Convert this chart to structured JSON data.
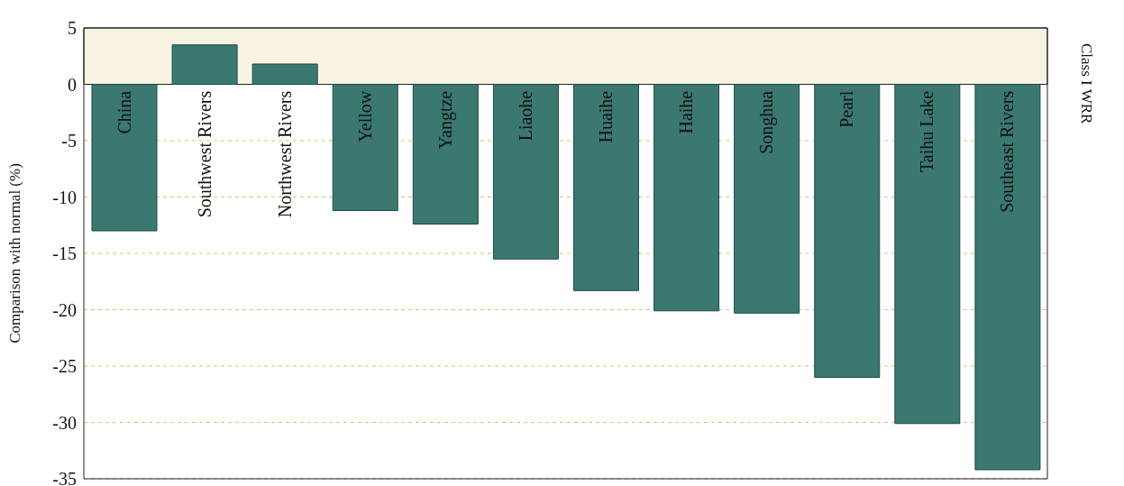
{
  "chart_data": {
    "type": "bar",
    "categories": [
      "China",
      "Southwest Rivers",
      "Northwest Rivers",
      "Yellow",
      "Yangtze",
      "Liaohe",
      "Huaihe",
      "Haihe",
      "Songhua",
      "Pearl",
      "Taihu Lake",
      "Southeast Rivers"
    ],
    "values": [
      -13.0,
      3.5,
      1.8,
      -11.2,
      -12.4,
      -15.5,
      -18.3,
      -20.1,
      -20.3,
      -26.0,
      -30.1,
      -34.2
    ],
    "color": "#3a7870",
    "ylabel": "Comparison with normal (%)",
    "annotations": [
      "Class I WRR"
    ],
    "ylim": [
      -35,
      5
    ],
    "yticks": [
      -35,
      -30,
      -25,
      -20,
      -15,
      -10,
      -5,
      0,
      5
    ],
    "grid": "y",
    "bands": [
      {
        "axis": "y",
        "from": 0,
        "to": 5,
        "color": "#f8f3e3"
      }
    ]
  }
}
